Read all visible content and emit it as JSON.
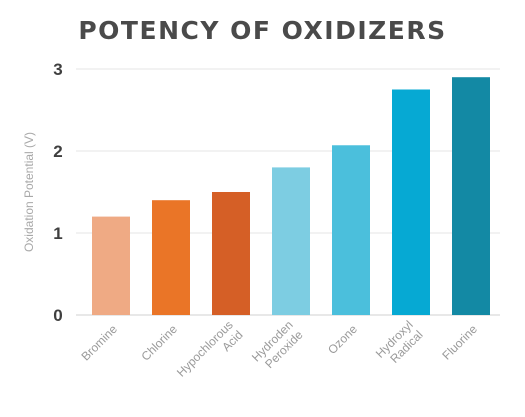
{
  "chart_data": {
    "type": "bar",
    "title": "POTENCY OF OXIDIZERS",
    "ylabel": "Oxidation Potential (V)",
    "xlabel": "",
    "ylim": [
      0,
      3
    ],
    "yticks": [
      "0",
      "1",
      "2",
      "3"
    ],
    "grid": true,
    "categories": [
      [
        "Bromine"
      ],
      [
        "Chlorine"
      ],
      [
        "Hypochlorous",
        "Acid"
      ],
      [
        "Hydroden",
        "Peroxide"
      ],
      [
        "Ozone"
      ],
      [
        "Hydroxyl",
        "Radical"
      ],
      [
        "Fluorine"
      ]
    ],
    "values": [
      1.2,
      1.4,
      1.5,
      1.8,
      2.07,
      2.75,
      2.9
    ],
    "colors": [
      "#efaa84",
      "#ea7527",
      "#d55f26",
      "#7dcde2",
      "#4bbfdc",
      "#06a9d3",
      "#1389a4"
    ]
  }
}
